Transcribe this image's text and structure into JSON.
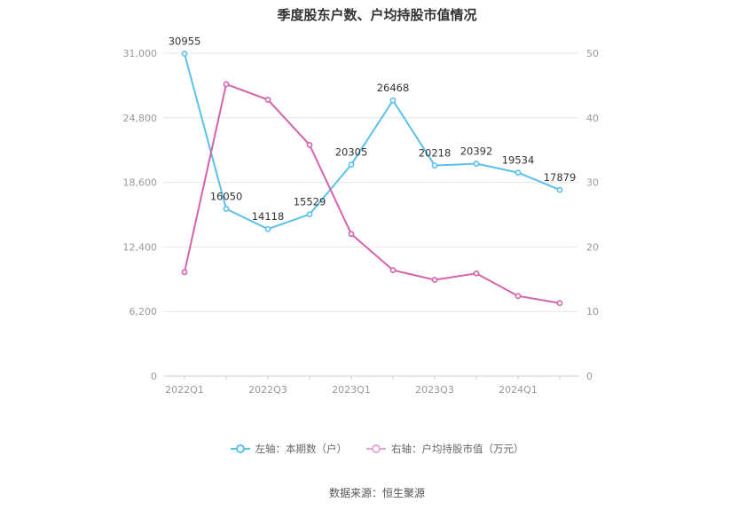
{
  "chart_data": {
    "type": "line",
    "title": "季度股东户数、户均持股市值情况",
    "x": [
      "2022Q1",
      "2022Q2",
      "2022Q3",
      "2022Q4",
      "2023Q1",
      "2023Q2",
      "2023Q3",
      "2023Q4",
      "2024Q1",
      "2024Q2"
    ],
    "x_tick_labels": [
      "2022Q1",
      "2022Q3",
      "2023Q1",
      "2023Q3",
      "2024Q1"
    ],
    "left_axis": {
      "ylim": [
        0,
        31000
      ],
      "ticks": [
        "0",
        "6,200",
        "12,400",
        "18,600",
        "24,800",
        "31,000"
      ]
    },
    "right_axis": {
      "ylim": [
        0,
        50
      ],
      "ticks": [
        "0",
        "10",
        "20",
        "30",
        "40",
        "50"
      ]
    },
    "series": [
      {
        "name": "左轴：本期数（户）",
        "axis": "left",
        "color": "#5bc0eb",
        "values": [
          30955,
          16050,
          14118,
          15529,
          20305,
          26468,
          20218,
          20392,
          19534,
          17879
        ],
        "labels": [
          "30955",
          "16050",
          "14118",
          "15529",
          "20305",
          "26468",
          "20218",
          "20392",
          "19534",
          "17879"
        ]
      },
      {
        "name": "右轴：户均持股市值（万元）",
        "axis": "right",
        "color": "#d462ae",
        "values": [
          16.1,
          45.2,
          42.8,
          35.8,
          22.0,
          16.4,
          14.9,
          15.9,
          12.4,
          11.3
        ]
      }
    ],
    "grid": true,
    "legend_position": "bottom"
  },
  "source": "数据来源：恒生聚源"
}
